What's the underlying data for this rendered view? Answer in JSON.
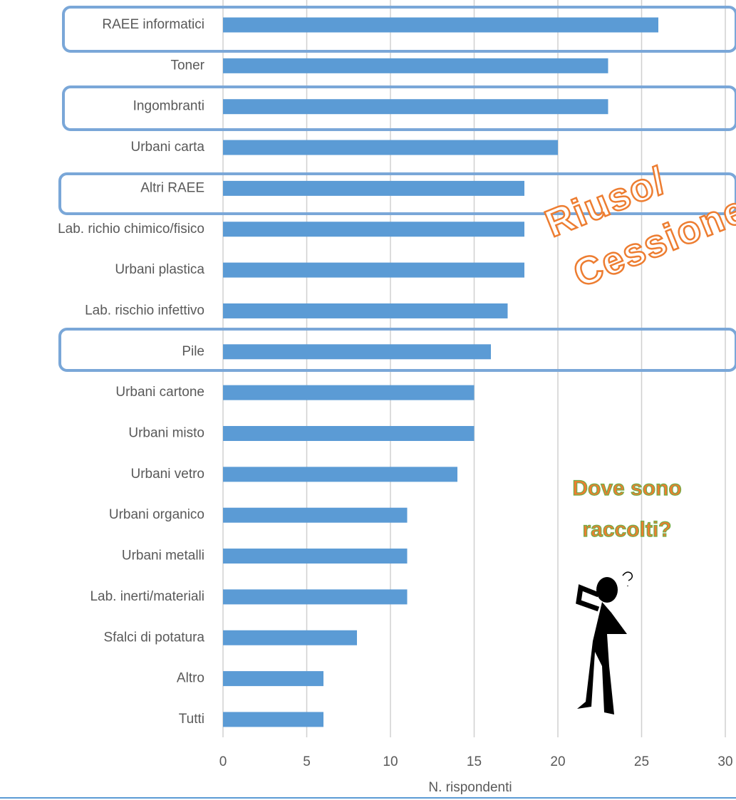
{
  "chart_data": {
    "type": "bar",
    "categories": [
      "RAEE informatici",
      "Toner",
      "Ingombranti",
      "Urbani carta",
      "Altri RAEE",
      "Lab. richio chimico/fisico",
      "Urbani plastica",
      "Lab. rischio infettivo",
      "Pile",
      "Urbani cartone",
      "Urbani misto",
      "Urbani vetro",
      "Urbani organico",
      "Urbani metalli",
      "Lab. inerti/materiali",
      "Sfalci di potatura",
      "Altro",
      "Tutti"
    ],
    "values": [
      26,
      23,
      23,
      20,
      18,
      18,
      18,
      17,
      16,
      15,
      15,
      14,
      11,
      11,
      11,
      8,
      6,
      6
    ],
    "color": "#5b9bd5",
    "xlim": [
      0,
      30
    ],
    "xticks": [
      0,
      5,
      10,
      15,
      20,
      25,
      30
    ],
    "grid": true,
    "x_label": "N. rispondenti",
    "annotations": [
      "Riuso/",
      "Cessione",
      "Dove sono",
      "raccolti?"
    ]
  }
}
